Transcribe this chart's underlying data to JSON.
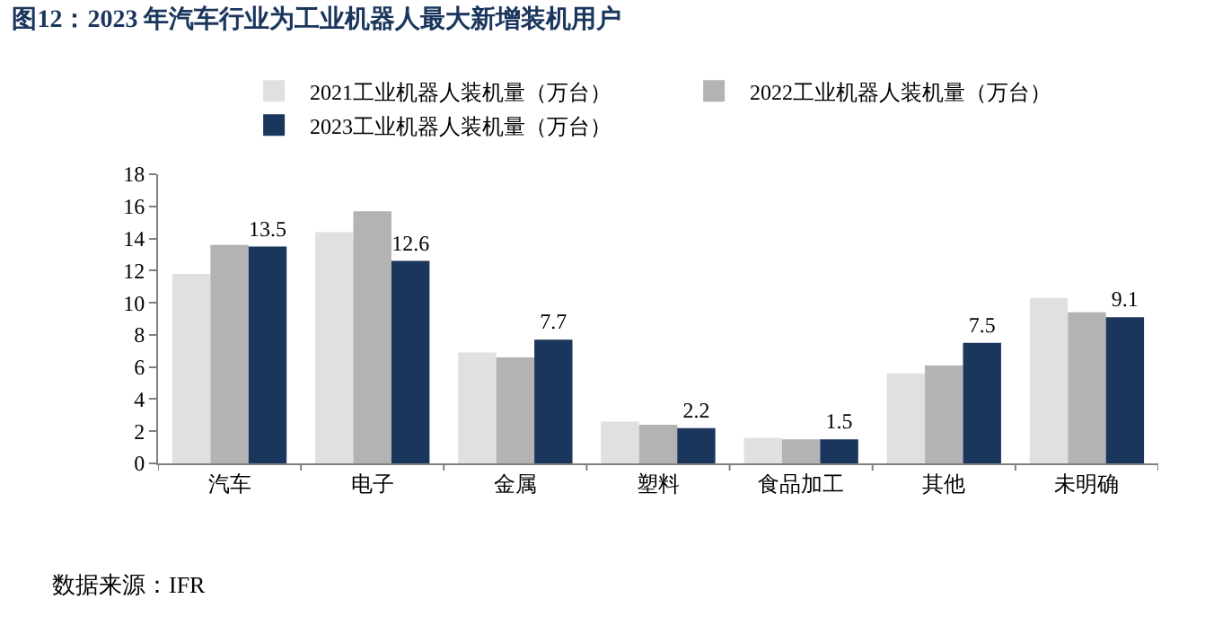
{
  "chart_data": {
    "type": "bar",
    "title": "图12：2023 年汽车行业为工业机器人最大新增装机用户",
    "categories": [
      "汽车",
      "电子",
      "金属",
      "塑料",
      "食品加工",
      "其他",
      "未明确"
    ],
    "series": [
      {
        "name": "2021工业机器人装机量（万台）",
        "color": "#e0e0e0",
        "values": [
          11.8,
          14.4,
          6.9,
          2.6,
          1.6,
          5.6,
          10.3
        ]
      },
      {
        "name": "2022工业机器人装机量（万台）",
        "color": "#b3b3b3",
        "values": [
          13.6,
          15.7,
          6.6,
          2.4,
          1.5,
          6.1,
          9.4
        ]
      },
      {
        "name": "2023工业机器人装机量（万台）",
        "color": "#1b365d",
        "values": [
          13.5,
          12.6,
          7.7,
          2.2,
          1.5,
          7.5,
          9.1
        ],
        "value_labels": [
          "13.5",
          "12.6",
          "7.7",
          "2.2",
          "1.5",
          "7.5",
          "9.1"
        ]
      }
    ],
    "ylim": [
      0,
      18
    ],
    "yticks": [
      0,
      2,
      4,
      6,
      8,
      10,
      12,
      14,
      16,
      18
    ],
    "legend": "top",
    "annotations": [
      "数据来源：IFR"
    ]
  }
}
